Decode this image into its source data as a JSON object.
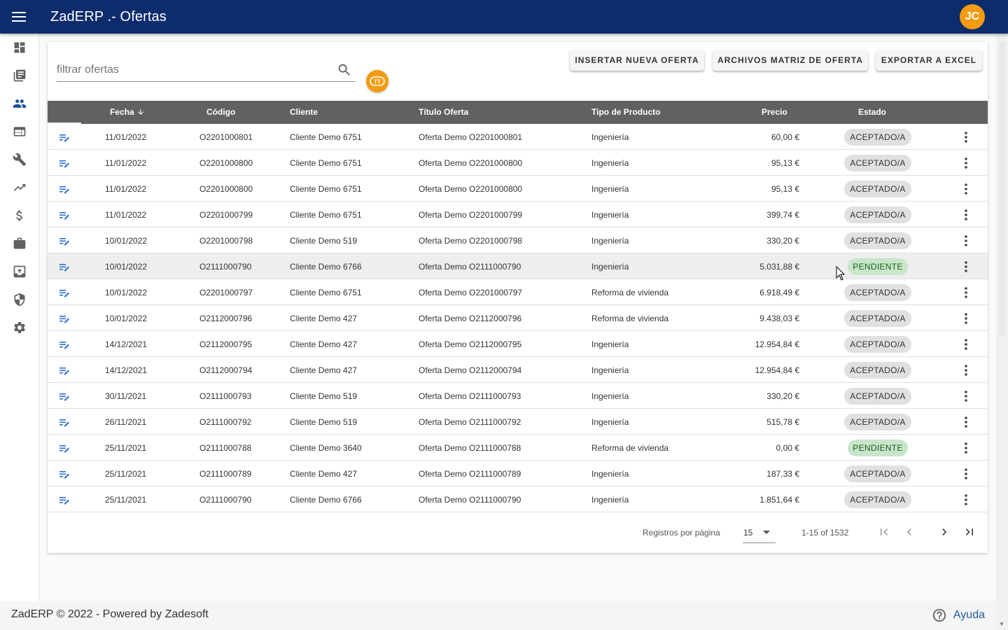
{
  "app": {
    "title": "ZadERP .- Ofertas",
    "user_initials": "JC",
    "primary_color": "#0d2c6c",
    "accent_color": "#f39c12"
  },
  "sidebar": {
    "items": [
      {
        "icon": "dashboard-icon"
      },
      {
        "icon": "library-books-icon"
      },
      {
        "icon": "people-icon"
      },
      {
        "icon": "web-icon"
      },
      {
        "icon": "wrench-icon"
      },
      {
        "icon": "trending-up-icon"
      },
      {
        "icon": "dollar-icon"
      },
      {
        "icon": "briefcase-icon"
      },
      {
        "icon": "archive-icon"
      },
      {
        "icon": "shield-icon"
      },
      {
        "icon": "gear-icon"
      }
    ]
  },
  "search": {
    "placeholder": "filtrar ofertas",
    "value": ""
  },
  "toolbar": {
    "insert_label": "Insertar nueva oferta",
    "matrix_label": "Archivos matriz de oferta",
    "export_label": "Exportar a Excel",
    "tt_label": "TT"
  },
  "table": {
    "headers": {
      "fecha": "Fecha",
      "codigo": "Código",
      "cliente": "Cliente",
      "titulo": "Título Oferta",
      "tipo": "Tipo de Producto",
      "precio": "Precio",
      "estado": "Estado"
    },
    "sort_indicator": "arrow-down-icon",
    "rows": [
      {
        "fecha": "11/01/2022",
        "codigo": "O2201000801",
        "cliente": "Cliente Demo 6751",
        "titulo": "Oferta Demo O2201000801",
        "tipo": "Ingeniería",
        "precio": "60,00 €",
        "estado": "ACEPTADO/A"
      },
      {
        "fecha": "11/01/2022",
        "codigo": "O2201000800",
        "cliente": "Cliente Demo 6751",
        "titulo": "Oferta Demo O2201000800",
        "tipo": "Ingeniería",
        "precio": "95,13 €",
        "estado": "ACEPTADO/A"
      },
      {
        "fecha": "11/01/2022",
        "codigo": "O2201000800",
        "cliente": "Cliente Demo 6751",
        "titulo": "Oferta Demo O2201000800",
        "tipo": "Ingeniería",
        "precio": "95,13 €",
        "estado": "ACEPTADO/A"
      },
      {
        "fecha": "11/01/2022",
        "codigo": "O2201000799",
        "cliente": "Cliente Demo 6751",
        "titulo": "Oferta Demo O2201000799",
        "tipo": "Ingeniería",
        "precio": "399,74 €",
        "estado": "ACEPTADO/A"
      },
      {
        "fecha": "10/01/2022",
        "codigo": "O2201000798",
        "cliente": "Cliente Demo 519",
        "titulo": "Oferta Demo O2201000798",
        "tipo": "Ingeniería",
        "precio": "330,20 €",
        "estado": "ACEPTADO/A"
      },
      {
        "fecha": "10/01/2022",
        "codigo": "O2111000790",
        "cliente": "Cliente Demo 6766",
        "titulo": "Oferta Demo O2111000790",
        "tipo": "Ingeniería",
        "precio": "5.031,88 €",
        "estado": "PENDIENTE"
      },
      {
        "fecha": "10/01/2022",
        "codigo": "O2201000797",
        "cliente": "Cliente Demo 6751",
        "titulo": "Oferta Demo O2201000797",
        "tipo": "Reforma de vivienda",
        "precio": "6.918,49 €",
        "estado": "ACEPTADO/A"
      },
      {
        "fecha": "10/01/2022",
        "codigo": "O2112000796",
        "cliente": "Cliente Demo 427",
        "titulo": "Oferta Demo O2112000796",
        "tipo": "Reforma de vivienda",
        "precio": "9.438,03 €",
        "estado": "ACEPTADO/A"
      },
      {
        "fecha": "14/12/2021",
        "codigo": "O2112000795",
        "cliente": "Cliente Demo 427",
        "titulo": "Oferta Demo O2112000795",
        "tipo": "Ingeniería",
        "precio": "12.954,84 €",
        "estado": "ACEPTADO/A"
      },
      {
        "fecha": "14/12/2021",
        "codigo": "O2112000794",
        "cliente": "Cliente Demo 427",
        "titulo": "Oferta Demo O2112000794",
        "tipo": "Ingeniería",
        "precio": "12.954,84 €",
        "estado": "ACEPTADO/A"
      },
      {
        "fecha": "30/11/2021",
        "codigo": "O2111000793",
        "cliente": "Cliente Demo 519",
        "titulo": "Oferta Demo O2111000793",
        "tipo": "Ingeniería",
        "precio": "330,20 €",
        "estado": "ACEPTADO/A"
      },
      {
        "fecha": "26/11/2021",
        "codigo": "O2111000792",
        "cliente": "Cliente Demo 519",
        "titulo": "Oferta Demo O2111000792",
        "tipo": "Ingeniería",
        "precio": "515,78 €",
        "estado": "ACEPTADO/A"
      },
      {
        "fecha": "25/11/2021",
        "codigo": "O2111000788",
        "cliente": "Cliente Demo 3640",
        "titulo": "Oferta Demo O2111000788",
        "tipo": "Reforma de vivienda",
        "precio": "0,00 €",
        "estado": "PENDIENTE"
      },
      {
        "fecha": "25/11/2021",
        "codigo": "O2111000789",
        "cliente": "Cliente Demo 427",
        "titulo": "Oferta Demo O2111000789",
        "tipo": "Ingeniería",
        "precio": "187,33 €",
        "estado": "ACEPTADO/A"
      },
      {
        "fecha": "25/11/2021",
        "codigo": "O2111000790",
        "cliente": "Cliente Demo 6766",
        "titulo": "Oferta Demo O2111000790",
        "tipo": "Ingeniería",
        "precio": "1.851,64 €",
        "estado": "ACEPTADO/A"
      }
    ]
  },
  "pagination": {
    "rows_per_page_label": "Registros por página",
    "rows_per_page_value": "15",
    "range_text": "1-15 of 1532"
  },
  "footer": {
    "text": "ZadERP © 2022 - Powered by Zadesoft",
    "help_label": "Ayuda"
  }
}
